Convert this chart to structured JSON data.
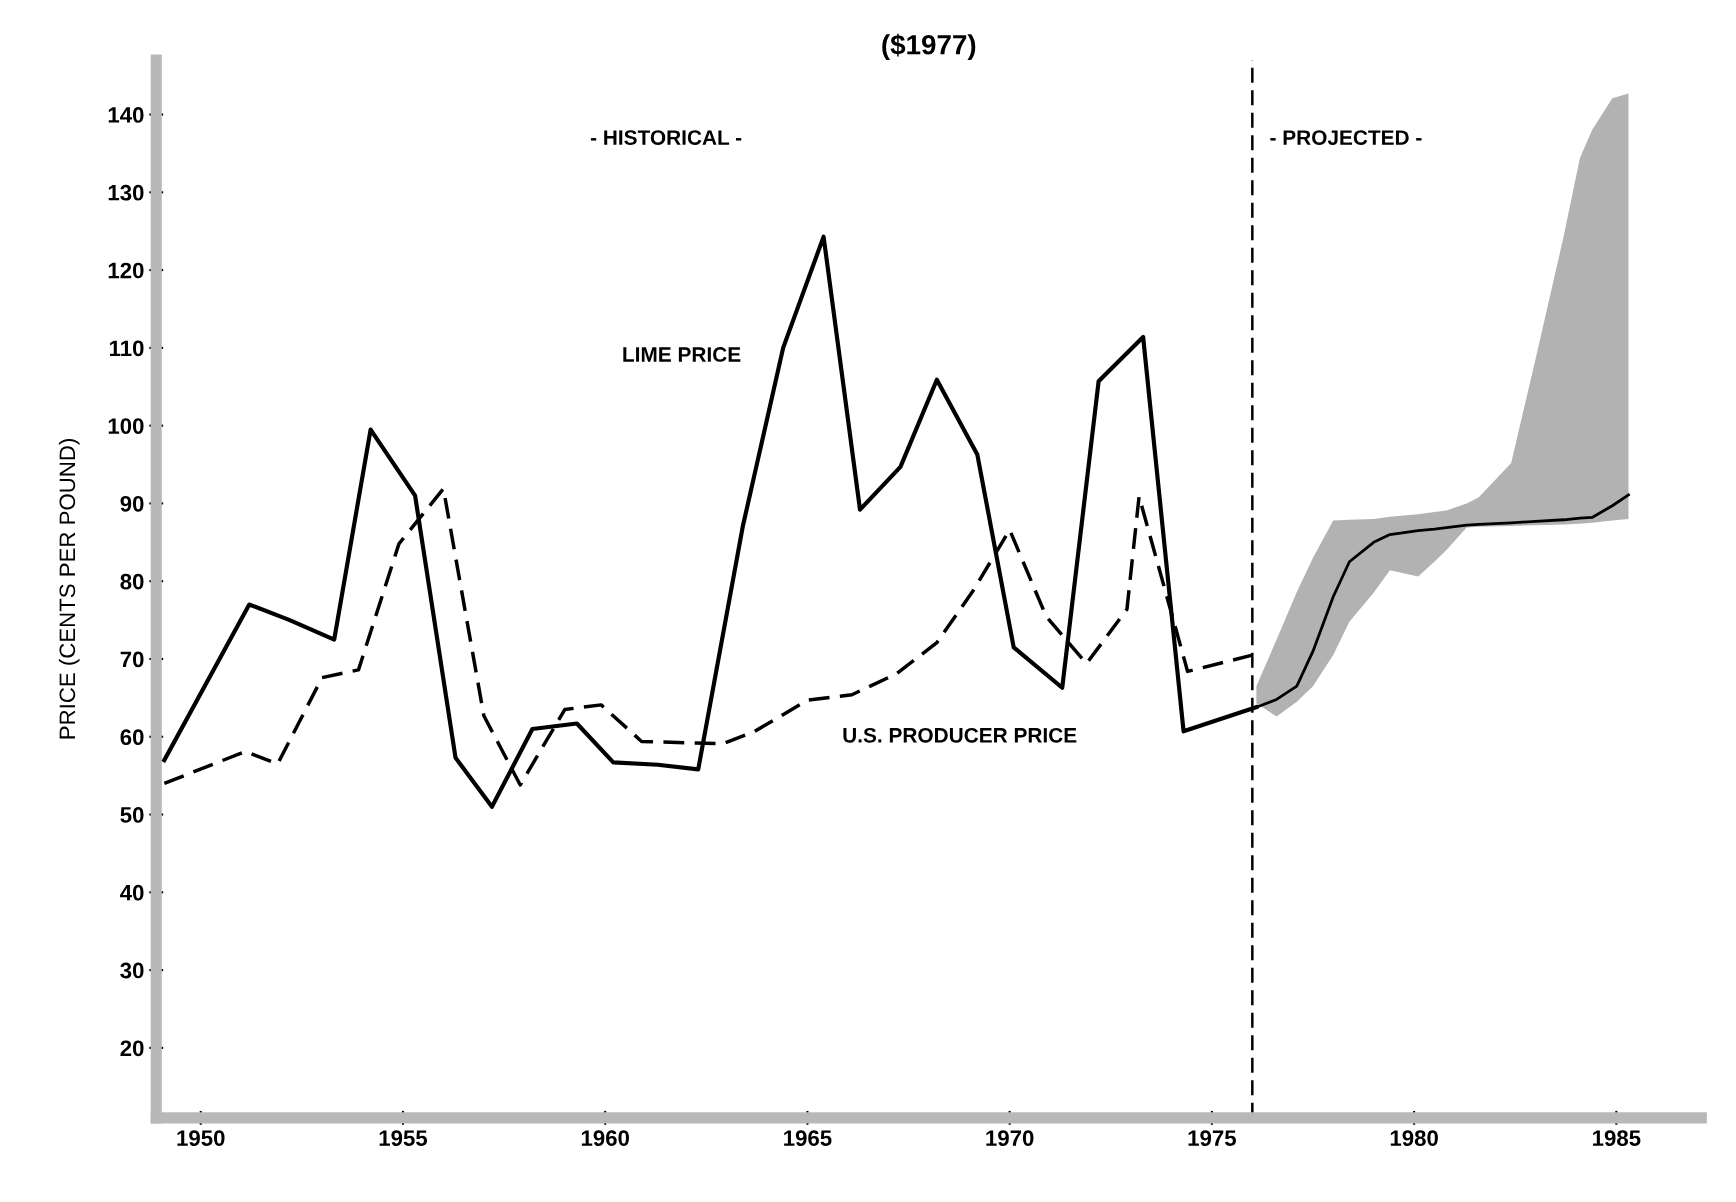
{
  "chart_data": {
    "type": "line",
    "title": "($1977)",
    "ylabel": "PRICE (CENTS PER POUND)",
    "annotations": [
      "- HISTORICAL -",
      "- PROJECTED -"
    ],
    "xlim": [
      1948.9,
      1987.1
    ],
    "ylim": [
      11,
      147
    ],
    "xticks": [
      1950,
      1955,
      1960,
      1965,
      1970,
      1975,
      1980,
      1985
    ],
    "yticks": [
      20,
      30,
      40,
      50,
      60,
      70,
      80,
      90,
      100,
      110,
      120,
      130,
      140
    ],
    "grid": false,
    "legend": false,
    "ref_lines": [
      {
        "axis": "x",
        "value": 1976.0,
        "color": "#000000",
        "line_style": "dashed"
      }
    ],
    "series": [
      {
        "name": "LIME PRICE",
        "color": "#000000",
        "line_style": "solid",
        "x": [
          1949.1,
          1951.2,
          1952.2,
          1953.3,
          1954.2,
          1955.3,
          1956.3,
          1957.2,
          1958.2,
          1959.3,
          1960.2,
          1961.3,
          1962.3,
          1963.4,
          1964.4,
          1965.4,
          1966.3,
          1967.3,
          1968.2,
          1969.2,
          1970.1,
          1971.3,
          1972.2,
          1973.3,
          1974.3,
          1976.1
        ],
        "values": [
          57,
          77,
          75,
          72.5,
          99.5,
          91,
          57.3,
          51,
          61,
          61.7,
          56.7,
          56.4,
          55.8,
          87,
          110,
          124.3,
          89.2,
          94.7,
          105.9,
          96.3,
          71.5,
          66.3,
          105.7,
          111.4,
          60.7,
          63.8
        ]
      },
      {
        "name": "U.S. PRODUCER PRICE",
        "color": "#000000",
        "line_style": "dashed",
        "x": [
          1949.1,
          1951.1,
          1951.9,
          1953.0,
          1953.9,
          1954.9,
          1956.0,
          1957.0,
          1957.9,
          1959.0,
          1959.9,
          1960.9,
          1962.9,
          1963.7,
          1965.0,
          1966.1,
          1967.2,
          1968.2,
          1969.1,
          1970.0,
          1970.9,
          1971.9,
          1972.9,
          1973.2,
          1974.4,
          1976.0
        ],
        "values": [
          54.0,
          58.1,
          56.5,
          67.6,
          68.6,
          84.8,
          91.9,
          62.7,
          53.8,
          63.5,
          64.1,
          59.4,
          59.1,
          60.7,
          64.7,
          65.4,
          68.1,
          72.1,
          78.8,
          86.6,
          75.5,
          69.4,
          76.4,
          90.9,
          68.4,
          70.5
        ]
      },
      {
        "type": "line",
        "color": "#000000",
        "line_style": "solid",
        "values": [
          63.8,
          64.8,
          66.5,
          71,
          78,
          82.5,
          85,
          86,
          86.5,
          86.7,
          86.9,
          87.2,
          87.3,
          87.5,
          87.7,
          87.9,
          88.1,
          88.2,
          89.7,
          91.1
        ],
        "x": [
          1976.1,
          1976.6,
          1977.1,
          1977.5,
          1978.0,
          1978.4,
          1979.0,
          1979.4,
          1980.1,
          1980.5,
          1980.8,
          1981.3,
          1981.6,
          1982.4,
          1983.0,
          1983.7,
          1984.1,
          1984.4,
          1984.9,
          1985.3
        ],
        "upper": [
          66.5,
          72.5,
          78.6,
          83,
          87.8,
          87.9,
          88.0,
          88.3,
          88.6,
          88.9,
          89.1,
          90,
          90.8,
          95.2,
          108.5,
          124.4,
          134.4,
          138,
          142.1,
          142.7
        ],
        "lower": [
          64.3,
          62.6,
          64.5,
          66.5,
          70.5,
          74.8,
          78.5,
          81.4,
          80.6,
          82.5,
          84,
          86.9,
          87,
          87.1,
          87.2,
          87.3,
          87.4,
          87.5,
          87.8,
          88.0
        ]
      }
    ]
  }
}
